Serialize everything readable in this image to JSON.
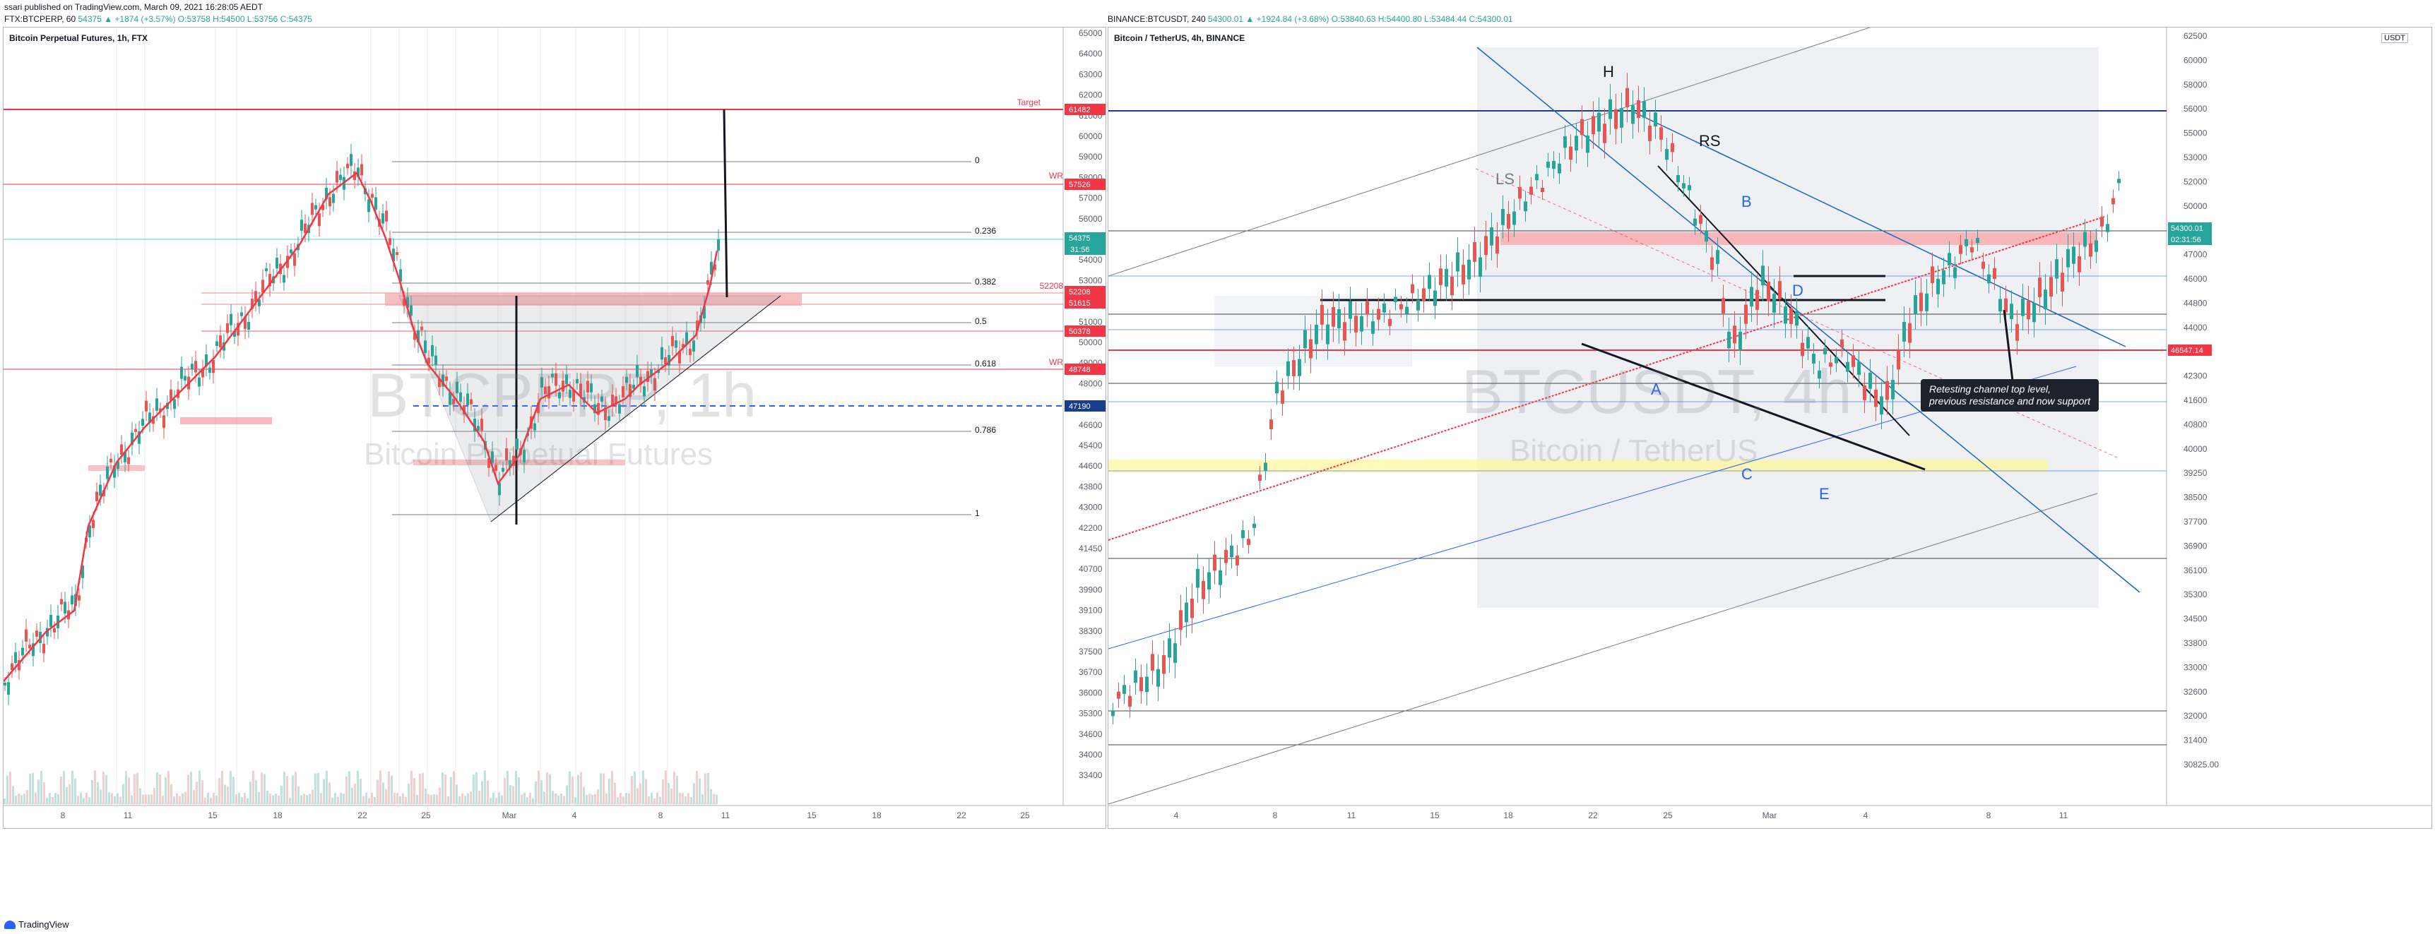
{
  "header": {
    "publisher": "ssari published on TradingView.com, March 09, 2021 16:28:05 AEDT"
  },
  "left": {
    "ohlc_label": "FTX:BTCPERP, 60",
    "ohlc_values": "54375 ▲ +1874 (+3.57%) O:53758 H:54500 L:53756 C:54375",
    "title": "Bitcoin Perpetual Futures, 1h, FTX",
    "watermark_big": "BTCPERP, 1h",
    "watermark_small": "Bitcoin Perpetual Futures",
    "price_axis": [
      "65000",
      "64000",
      "63000",
      "62000",
      "61000",
      "60000",
      "59000",
      "58000",
      "57000",
      "56000",
      "55000",
      "54000",
      "53000",
      "52000",
      "51000",
      "50000",
      "49000",
      "48000",
      "47800",
      "46600",
      "45400",
      "44600",
      "43800",
      "43000",
      "42200",
      "41450",
      "40700",
      "39900",
      "39100",
      "38300",
      "37500",
      "36700",
      "36000",
      "35300",
      "34600",
      "34000",
      "33400"
    ],
    "time_axis": [
      "8",
      "11",
      "15",
      "18",
      "22",
      "25",
      "Mar",
      "4",
      "8",
      "11",
      "15",
      "18",
      "22",
      "25"
    ],
    "fib": [
      "0",
      "0.236",
      "0.382",
      "0.5",
      "0.618",
      "0.786",
      "1"
    ],
    "line_labels": {
      "target": "Target",
      "wr1": "WR",
      "wr2": "WR",
      "level": "52208"
    },
    "price_tags": {
      "target": "61482",
      "wr1": "57526",
      "last": "54375",
      "timer": "31:56",
      "t1": "52208",
      "t2": "51615",
      "t3": "50378",
      "wr2": "48748",
      "blue": "47190"
    }
  },
  "right": {
    "ohlc_label": "BINANCE:BTCUSDT, 240",
    "ohlc_values": "54300.01 ▲ +1924.84 (+3.68%) O:53840.63 H:54400.80 L:53484.44 C:54300.01",
    "title": "Bitcoin / TetherUS, 4h, BINANCE",
    "watermark_big": "BTCUSDT, 4h",
    "watermark_small": "Bitcoin / TetherUS",
    "currency": "USDT",
    "price_axis": [
      "62500",
      "60000",
      "58000",
      "56000",
      "55000",
      "53000",
      "52000",
      "50000",
      "49000",
      "47000",
      "46000",
      "44800",
      "44000",
      "43200",
      "42300",
      "41600",
      "40800",
      "40000",
      "39250",
      "38500",
      "37700",
      "36900",
      "36100",
      "35300",
      "34500",
      "33800",
      "33000",
      "32600",
      "32000",
      "31400",
      "30825.00"
    ],
    "time_axis": [
      "4",
      "8",
      "11",
      "15",
      "18",
      "22",
      "25",
      "Mar",
      "4",
      "8",
      "11"
    ],
    "letters": {
      "H": "H",
      "RS": "RS",
      "LS": "LS",
      "A": "A",
      "B": "B",
      "C": "C",
      "D": "D",
      "E": "E"
    },
    "note_line1": "Retesting channel top level,",
    "note_line2": "previous resistance and now support",
    "price_tags": {
      "last": "54300.01",
      "timer": "02:31:56",
      "red": "46547.14"
    }
  },
  "footer": {
    "brand": "TradingView"
  },
  "colors": {
    "up": "#26a69a",
    "down": "#ef5350",
    "red": "#f23645",
    "blue": "#2962ff",
    "navy": "#1a3d8f"
  }
}
